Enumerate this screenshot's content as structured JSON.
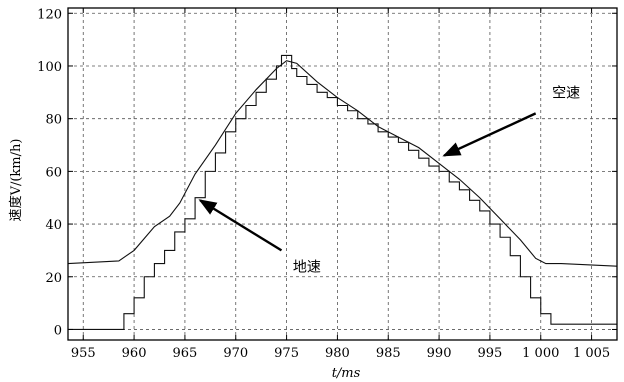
{
  "chart_data": {
    "type": "line",
    "xlabel": "t/ms",
    "ylabel": "速度V/(km/h)",
    "xlim": [
      953.5,
      1007.5
    ],
    "ylim": [
      -4,
      122
    ],
    "grid": true,
    "x_ticks": [
      955,
      960,
      965,
      970,
      975,
      980,
      985,
      990,
      995,
      1000,
      1005
    ],
    "x_tick_labels": [
      "955",
      "960",
      "965",
      "970",
      "975",
      "980",
      "985",
      "990",
      "995",
      "1 000",
      "1 005"
    ],
    "y_ticks": [
      0,
      20,
      40,
      60,
      80,
      100,
      120
    ],
    "y_tick_labels": [
      "0",
      "20",
      "40",
      "60",
      "80",
      "100",
      "120"
    ],
    "series": [
      {
        "name": "空速",
        "style": "line",
        "x": [
          953.5,
          958.5,
          960,
          962,
          963.5,
          964.5,
          966,
          968,
          970,
          972,
          974,
          975,
          976,
          978,
          980,
          982,
          984,
          986,
          988,
          990,
          992,
          994,
          996,
          998,
          999.5,
          1000.5,
          1002,
          1007.5
        ],
        "y": [
          25,
          26,
          30,
          39,
          43,
          48,
          59,
          70,
          82,
          91,
          99,
          102,
          101,
          94,
          88,
          83,
          77,
          73,
          69,
          63,
          57,
          50,
          42,
          34,
          27,
          25,
          25,
          24
        ]
      },
      {
        "name": "地速",
        "style": "step",
        "x": [
          953.5,
          959,
          960,
          961,
          962,
          963,
          964,
          965,
          966,
          967,
          968,
          969,
          970,
          971,
          972,
          973,
          974,
          974.5,
          975.5,
          976,
          977,
          978,
          979,
          980,
          981,
          982,
          983,
          984,
          985,
          986,
          987,
          988,
          989,
          990,
          991,
          992,
          993,
          994,
          995,
          996,
          997,
          998,
          999,
          1000,
          1001,
          1007.5
        ],
        "y": [
          0,
          6,
          12,
          20,
          25,
          30,
          37,
          42,
          50,
          60,
          67,
          75,
          80,
          85,
          90,
          95,
          100,
          104,
          99,
          96,
          93,
          90,
          88,
          85,
          83,
          80,
          78,
          75,
          73,
          71,
          68,
          65,
          62,
          60,
          56,
          53,
          49,
          45,
          40,
          35,
          28,
          20,
          12,
          6,
          2,
          2
        ]
      }
    ],
    "annotations": [
      {
        "text": "空速",
        "target": [
          990,
          65
        ],
        "text_anchor": [
          1001,
          83
        ]
      },
      {
        "text": "地速",
        "target": [
          966,
          50
        ],
        "text_anchor": [
          975,
          32
        ]
      }
    ]
  }
}
